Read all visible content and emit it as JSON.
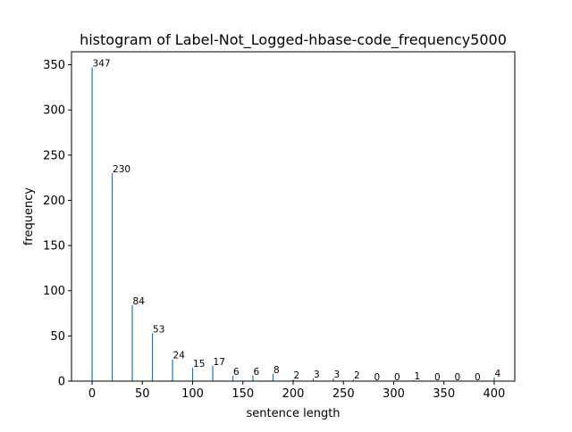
{
  "chart_data": {
    "type": "bar",
    "title": "histogram of Label-Not_Logged-hbase-code_frequency5000",
    "xlabel": "sentence length",
    "ylabel": "frequency",
    "x": [
      0,
      20,
      40,
      60,
      80,
      100,
      120,
      140,
      160,
      180,
      200,
      220,
      240,
      260,
      280,
      300,
      320,
      340,
      360,
      380,
      400
    ],
    "values": [
      347,
      230,
      84,
      53,
      24,
      15,
      17,
      6,
      6,
      8,
      2,
      3,
      3,
      2,
      0,
      0,
      1,
      0,
      0,
      0,
      4
    ],
    "data_labels": [
      "347",
      "230",
      "84",
      "53",
      "24",
      "15",
      "17",
      "6",
      "6",
      "8",
      "2",
      "3",
      "3",
      "2",
      "0",
      "0",
      "1",
      "0",
      "0",
      "0",
      "4"
    ],
    "xlim": [
      -20.5,
      420.5
    ],
    "ylim": [
      0,
      364.35
    ],
    "xticks": [
      0,
      50,
      100,
      150,
      200,
      250,
      300,
      350,
      400
    ],
    "xtick_labels": [
      "0",
      "50",
      "100",
      "150",
      "200",
      "250",
      "300",
      "350",
      "400"
    ],
    "yticks": [
      0,
      50,
      100,
      150,
      200,
      250,
      300,
      350
    ],
    "ytick_labels": [
      "0",
      "50",
      "100",
      "150",
      "200",
      "250",
      "300",
      "350"
    ],
    "bar_color": "#1f77b4",
    "grid": false,
    "legend": "none"
  }
}
